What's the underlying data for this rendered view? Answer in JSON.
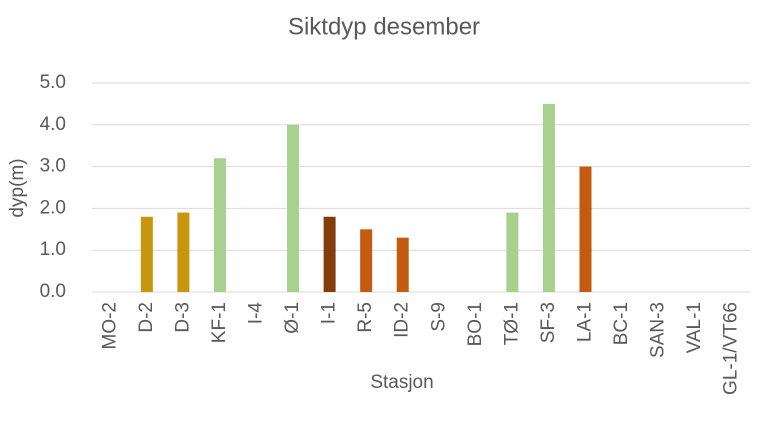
{
  "chart_data": {
    "type": "bar",
    "title": "Siktdyp desember",
    "x_label": "Stasjon",
    "y_label": "dyp(m)",
    "categories": [
      "MO-2",
      "D-2",
      "D-3",
      "KF-1",
      "I-4",
      "Ø-1",
      "I-1",
      "R-5",
      "ID-2",
      "S-9",
      "BO-1",
      "TØ-1",
      "SF-3",
      "LA-1",
      "BC-1",
      "SAN-3",
      "VAL-1",
      "GL-1/VT66"
    ],
    "values": [
      null,
      1.8,
      1.9,
      3.2,
      null,
      4.0,
      1.8,
      1.5,
      1.3,
      null,
      null,
      1.9,
      4.5,
      3.0,
      null,
      null,
      null,
      null
    ],
    "colors": [
      null,
      "#c8960c",
      "#c8960c",
      "#a9d18e",
      null,
      "#a9d18e",
      "#843c0c",
      "#c55a11",
      "#c55a11",
      null,
      null,
      "#a9d18e",
      "#a9d18e",
      "#c55a11",
      null,
      null,
      null,
      null
    ],
    "ylim": [
      0,
      5
    ],
    "yticks": [
      {
        "value": 0,
        "label": "0.0"
      },
      {
        "value": 1,
        "label": "1.0"
      },
      {
        "value": 2,
        "label": "2.0"
      },
      {
        "value": 3,
        "label": "3.0"
      },
      {
        "value": 4,
        "label": "4.0"
      },
      {
        "value": 5,
        "label": "5.0"
      }
    ],
    "grid": true
  }
}
